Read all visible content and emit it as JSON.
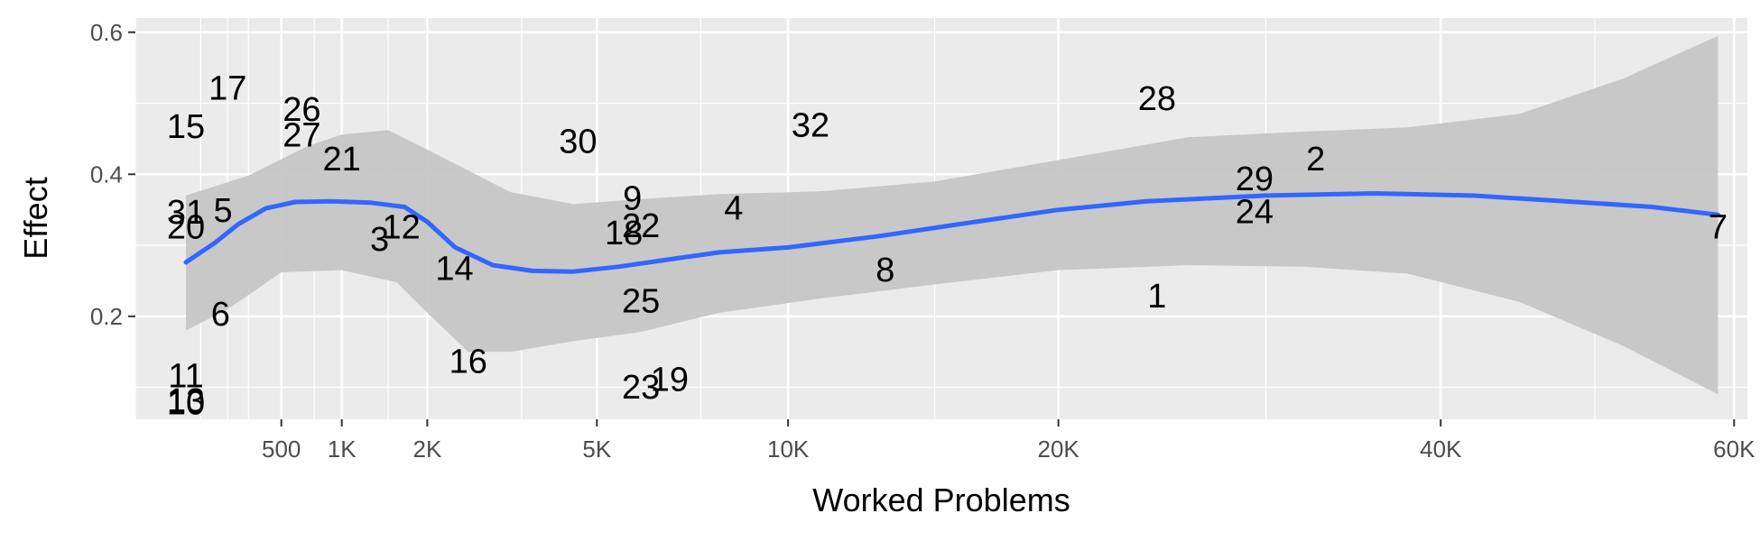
{
  "chart_data": {
    "type": "scatter",
    "title": "",
    "xlabel": "Worked Problems",
    "ylabel": "Effect",
    "x_scale": "sqrt",
    "xlim": [
      0,
      61000
    ],
    "ylim": [
      0.055,
      0.62
    ],
    "grid": true,
    "x_major_ticks": [
      {
        "value": 500,
        "label": "500"
      },
      {
        "value": 1000,
        "label": "1K"
      },
      {
        "value": 2000,
        "label": "2K"
      },
      {
        "value": 5000,
        "label": "5K"
      },
      {
        "value": 10000,
        "label": "10K"
      },
      {
        "value": 20000,
        "label": "20K"
      },
      {
        "value": 40000,
        "label": "40K"
      },
      {
        "value": 60000,
        "label": "60K"
      }
    ],
    "x_minor_ticks": [
      0,
      100,
      200,
      300,
      750,
      1500,
      3500,
      7500,
      15000,
      30000,
      50000
    ],
    "y_major_ticks": [
      {
        "value": 0.2,
        "label": "0.2"
      },
      {
        "value": 0.4,
        "label": "0.4"
      },
      {
        "value": 0.6,
        "label": "0.6"
      }
    ],
    "y_minor_ticks": [
      0.1,
      0.3,
      0.5
    ],
    "points": [
      {
        "label": "1",
        "x": 24500,
        "y": 0.225
      },
      {
        "label": "2",
        "x": 32700,
        "y": 0.418
      },
      {
        "label": "3",
        "x": 1400,
        "y": 0.305
      },
      {
        "label": "4",
        "x": 8400,
        "y": 0.349
      },
      {
        "label": "5",
        "x": 180,
        "y": 0.346
      },
      {
        "label": "6",
        "x": 170,
        "y": 0.2
      },
      {
        "label": "7",
        "x": 58800,
        "y": 0.322
      },
      {
        "label": "8",
        "x": 13200,
        "y": 0.262
      },
      {
        "label": "9",
        "x": 5800,
        "y": 0.363
      },
      {
        "label": "10",
        "x": 60,
        "y": 0.075
      },
      {
        "label": "11",
        "x": 60,
        "y": 0.113
      },
      {
        "label": "12",
        "x": 1660,
        "y": 0.322
      },
      {
        "label": "13",
        "x": 60,
        "y": 0.078
      },
      {
        "label": "14",
        "x": 2390,
        "y": 0.264
      },
      {
        "label": "15",
        "x": 60,
        "y": 0.464
      },
      {
        "label": "16",
        "x": 2600,
        "y": 0.133
      },
      {
        "label": "17",
        "x": 200,
        "y": 0.518
      },
      {
        "label": "18",
        "x": 5600,
        "y": 0.314
      },
      {
        "label": "19",
        "x": 6700,
        "y": 0.108
      },
      {
        "label": "20",
        "x": 60,
        "y": 0.322
      },
      {
        "label": "21",
        "x": 1000,
        "y": 0.418
      },
      {
        "label": "22",
        "x": 6000,
        "y": 0.324
      },
      {
        "label": "23",
        "x": 6000,
        "y": 0.097
      },
      {
        "label": "24",
        "x": 29400,
        "y": 0.344
      },
      {
        "label": "25",
        "x": 6000,
        "y": 0.218
      },
      {
        "label": "26",
        "x": 650,
        "y": 0.488
      },
      {
        "label": "27",
        "x": 650,
        "y": 0.452
      },
      {
        "label": "28",
        "x": 24500,
        "y": 0.503
      },
      {
        "label": "29",
        "x": 29400,
        "y": 0.39
      },
      {
        "label": "30",
        "x": 4600,
        "y": 0.443
      },
      {
        "label": "31",
        "x": 60,
        "y": 0.343
      },
      {
        "label": "32",
        "x": 10700,
        "y": 0.466
      }
    ],
    "smooth": {
      "color": "#3366ff",
      "band_color": "#c6c6c6",
      "curve": [
        {
          "x": 60,
          "y": 0.276
        },
        {
          "x": 150,
          "y": 0.304
        },
        {
          "x": 250,
          "y": 0.33
        },
        {
          "x": 400,
          "y": 0.352
        },
        {
          "x": 600,
          "y": 0.361
        },
        {
          "x": 900,
          "y": 0.362
        },
        {
          "x": 1300,
          "y": 0.36
        },
        {
          "x": 1700,
          "y": 0.354
        },
        {
          "x": 2000,
          "y": 0.333
        },
        {
          "x": 2400,
          "y": 0.297
        },
        {
          "x": 3000,
          "y": 0.272
        },
        {
          "x": 3700,
          "y": 0.264
        },
        {
          "x": 4500,
          "y": 0.263
        },
        {
          "x": 5500,
          "y": 0.27
        },
        {
          "x": 6800,
          "y": 0.281
        },
        {
          "x": 8000,
          "y": 0.29
        },
        {
          "x": 10000,
          "y": 0.297
        },
        {
          "x": 13000,
          "y": 0.313
        },
        {
          "x": 16000,
          "y": 0.33
        },
        {
          "x": 20000,
          "y": 0.35
        },
        {
          "x": 24000,
          "y": 0.362
        },
        {
          "x": 30000,
          "y": 0.37
        },
        {
          "x": 36000,
          "y": 0.373
        },
        {
          "x": 42000,
          "y": 0.37
        },
        {
          "x": 48000,
          "y": 0.362
        },
        {
          "x": 54000,
          "y": 0.354
        },
        {
          "x": 58800,
          "y": 0.343
        }
      ],
      "upper": [
        {
          "x": 60,
          "y": 0.37
        },
        {
          "x": 300,
          "y": 0.398
        },
        {
          "x": 700,
          "y": 0.44
        },
        {
          "x": 1000,
          "y": 0.456
        },
        {
          "x": 1500,
          "y": 0.462
        },
        {
          "x": 1900,
          "y": 0.44
        },
        {
          "x": 2500,
          "y": 0.41
        },
        {
          "x": 3300,
          "y": 0.375
        },
        {
          "x": 4500,
          "y": 0.358
        },
        {
          "x": 6000,
          "y": 0.365
        },
        {
          "x": 8000,
          "y": 0.372
        },
        {
          "x": 11000,
          "y": 0.376
        },
        {
          "x": 15000,
          "y": 0.39
        },
        {
          "x": 20000,
          "y": 0.42
        },
        {
          "x": 26000,
          "y": 0.452
        },
        {
          "x": 32000,
          "y": 0.46
        },
        {
          "x": 38000,
          "y": 0.466
        },
        {
          "x": 45000,
          "y": 0.485
        },
        {
          "x": 52000,
          "y": 0.535
        },
        {
          "x": 58800,
          "y": 0.595
        }
      ],
      "lower": [
        {
          "x": 58800,
          "y": 0.09
        },
        {
          "x": 52000,
          "y": 0.158
        },
        {
          "x": 45000,
          "y": 0.22
        },
        {
          "x": 38000,
          "y": 0.26
        },
        {
          "x": 32000,
          "y": 0.27
        },
        {
          "x": 26000,
          "y": 0.272
        },
        {
          "x": 20000,
          "y": 0.265
        },
        {
          "x": 15000,
          "y": 0.245
        },
        {
          "x": 11000,
          "y": 0.225
        },
        {
          "x": 8000,
          "y": 0.205
        },
        {
          "x": 6000,
          "y": 0.178
        },
        {
          "x": 4500,
          "y": 0.165
        },
        {
          "x": 3300,
          "y": 0.15
        },
        {
          "x": 2600,
          "y": 0.15
        },
        {
          "x": 2000,
          "y": 0.205
        },
        {
          "x": 1600,
          "y": 0.248
        },
        {
          "x": 1000,
          "y": 0.265
        },
        {
          "x": 500,
          "y": 0.262
        },
        {
          "x": 200,
          "y": 0.21
        },
        {
          "x": 60,
          "y": 0.18
        }
      ]
    },
    "colors": {
      "panel_background": "#ebebeb",
      "grid": "#ffffff",
      "tick_text": "#4d4d4d",
      "tick_mark": "#333333",
      "point_text": "#000000"
    }
  }
}
